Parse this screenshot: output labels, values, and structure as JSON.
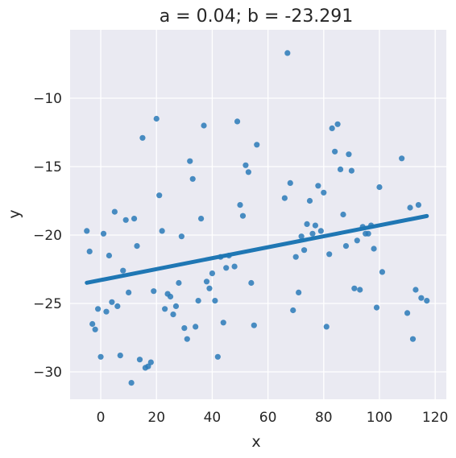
{
  "chart_data": {
    "type": "scatter",
    "title": "a = 0.04; b = -23.291",
    "xlabel": "x",
    "ylabel": "y",
    "xlim": [
      -11,
      124
    ],
    "ylim": [
      -32,
      -5
    ],
    "xticks": [
      0,
      20,
      40,
      60,
      80,
      100,
      120
    ],
    "yticks": [
      -30,
      -25,
      -20,
      -15,
      -10
    ],
    "xtick_labels": [
      "0",
      "20",
      "40",
      "60",
      "80",
      "100",
      "120"
    ],
    "ytick_labels": [
      "−30",
      "−25",
      "−20",
      "−15",
      "−10"
    ],
    "grid": true,
    "background": "#eaeaf2",
    "point_color": "#2a7ab8",
    "line_color": "#1f77b4",
    "regression_line": {
      "x": [
        -5,
        117
      ],
      "y": [
        -23.49,
        -18.61
      ]
    },
    "points": [
      {
        "x": -5,
        "y": -19.7
      },
      {
        "x": -4,
        "y": -21.2
      },
      {
        "x": -3,
        "y": -26.5
      },
      {
        "x": -2,
        "y": -26.9
      },
      {
        "x": -1,
        "y": -25.4
      },
      {
        "x": 0,
        "y": -28.9
      },
      {
        "x": 1,
        "y": -19.9
      },
      {
        "x": 2,
        "y": -25.6
      },
      {
        "x": 3,
        "y": -21.5
      },
      {
        "x": 4,
        "y": -24.9
      },
      {
        "x": 5,
        "y": -18.3
      },
      {
        "x": 6,
        "y": -25.2
      },
      {
        "x": 7,
        "y": -28.8
      },
      {
        "x": 8,
        "y": -22.6
      },
      {
        "x": 9,
        "y": -18.9
      },
      {
        "x": 10,
        "y": -24.2
      },
      {
        "x": 11,
        "y": -30.8
      },
      {
        "x": 12,
        "y": -18.8
      },
      {
        "x": 13,
        "y": -20.8
      },
      {
        "x": 14,
        "y": -29.1
      },
      {
        "x": 15,
        "y": -12.9
      },
      {
        "x": 16,
        "y": -29.7
      },
      {
        "x": 17,
        "y": -29.6
      },
      {
        "x": 18,
        "y": -29.3
      },
      {
        "x": 19,
        "y": -24.1
      },
      {
        "x": 20,
        "y": -11.5
      },
      {
        "x": 21,
        "y": -17.1
      },
      {
        "x": 22,
        "y": -19.7
      },
      {
        "x": 23,
        "y": -25.4
      },
      {
        "x": 24,
        "y": -24.3
      },
      {
        "x": 25,
        "y": -24.5
      },
      {
        "x": 26,
        "y": -25.8
      },
      {
        "x": 27,
        "y": -25.2
      },
      {
        "x": 28,
        "y": -23.5
      },
      {
        "x": 29,
        "y": -20.1
      },
      {
        "x": 30,
        "y": -26.8
      },
      {
        "x": 31,
        "y": -27.6
      },
      {
        "x": 32,
        "y": -14.6
      },
      {
        "x": 33,
        "y": -15.9
      },
      {
        "x": 34,
        "y": -26.7
      },
      {
        "x": 35,
        "y": -24.8
      },
      {
        "x": 36,
        "y": -18.8
      },
      {
        "x": 37,
        "y": -12.0
      },
      {
        "x": 38,
        "y": -23.4
      },
      {
        "x": 39,
        "y": -23.9
      },
      {
        "x": 40,
        "y": -22.8
      },
      {
        "x": 41,
        "y": -24.8
      },
      {
        "x": 42,
        "y": -28.9
      },
      {
        "x": 43,
        "y": -21.6
      },
      {
        "x": 44,
        "y": -26.4
      },
      {
        "x": 45,
        "y": -22.4
      },
      {
        "x": 46,
        "y": -21.5
      },
      {
        "x": 48,
        "y": -22.3
      },
      {
        "x": 49,
        "y": -11.7
      },
      {
        "x": 50,
        "y": -17.8
      },
      {
        "x": 51,
        "y": -18.6
      },
      {
        "x": 52,
        "y": -14.9
      },
      {
        "x": 53,
        "y": -15.4
      },
      {
        "x": 54,
        "y": -23.5
      },
      {
        "x": 55,
        "y": -26.6
      },
      {
        "x": 56,
        "y": -13.4
      },
      {
        "x": 66,
        "y": -17.3
      },
      {
        "x": 67,
        "y": -6.7
      },
      {
        "x": 68,
        "y": -16.2
      },
      {
        "x": 69,
        "y": -25.5
      },
      {
        "x": 70,
        "y": -21.6
      },
      {
        "x": 71,
        "y": -24.2
      },
      {
        "x": 72,
        "y": -20.1
      },
      {
        "x": 73,
        "y": -21.1
      },
      {
        "x": 74,
        "y": -19.2
      },
      {
        "x": 75,
        "y": -17.5
      },
      {
        "x": 76,
        "y": -19.9
      },
      {
        "x": 77,
        "y": -19.3
      },
      {
        "x": 78,
        "y": -16.4
      },
      {
        "x": 79,
        "y": -19.7
      },
      {
        "x": 80,
        "y": -16.9
      },
      {
        "x": 81,
        "y": -26.7
      },
      {
        "x": 82,
        "y": -21.4
      },
      {
        "x": 83,
        "y": -12.2
      },
      {
        "x": 84,
        "y": -13.9
      },
      {
        "x": 85,
        "y": -11.9
      },
      {
        "x": 86,
        "y": -15.2
      },
      {
        "x": 87,
        "y": -18.5
      },
      {
        "x": 88,
        "y": -20.8
      },
      {
        "x": 89,
        "y": -14.1
      },
      {
        "x": 90,
        "y": -15.3
      },
      {
        "x": 91,
        "y": -23.9
      },
      {
        "x": 92,
        "y": -20.4
      },
      {
        "x": 93,
        "y": -24.0
      },
      {
        "x": 94,
        "y": -19.4
      },
      {
        "x": 95,
        "y": -19.9
      },
      {
        "x": 96,
        "y": -19.9
      },
      {
        "x": 97,
        "y": -19.3
      },
      {
        "x": 98,
        "y": -21.0
      },
      {
        "x": 99,
        "y": -25.3
      },
      {
        "x": 100,
        "y": -16.5
      },
      {
        "x": 101,
        "y": -22.7
      },
      {
        "x": 108,
        "y": -14.4
      },
      {
        "x": 110,
        "y": -25.7
      },
      {
        "x": 111,
        "y": -18.0
      },
      {
        "x": 112,
        "y": -27.6
      },
      {
        "x": 113,
        "y": -24.0
      },
      {
        "x": 114,
        "y": -17.8
      },
      {
        "x": 115,
        "y": -24.6
      },
      {
        "x": 117,
        "y": -24.8
      }
    ]
  }
}
